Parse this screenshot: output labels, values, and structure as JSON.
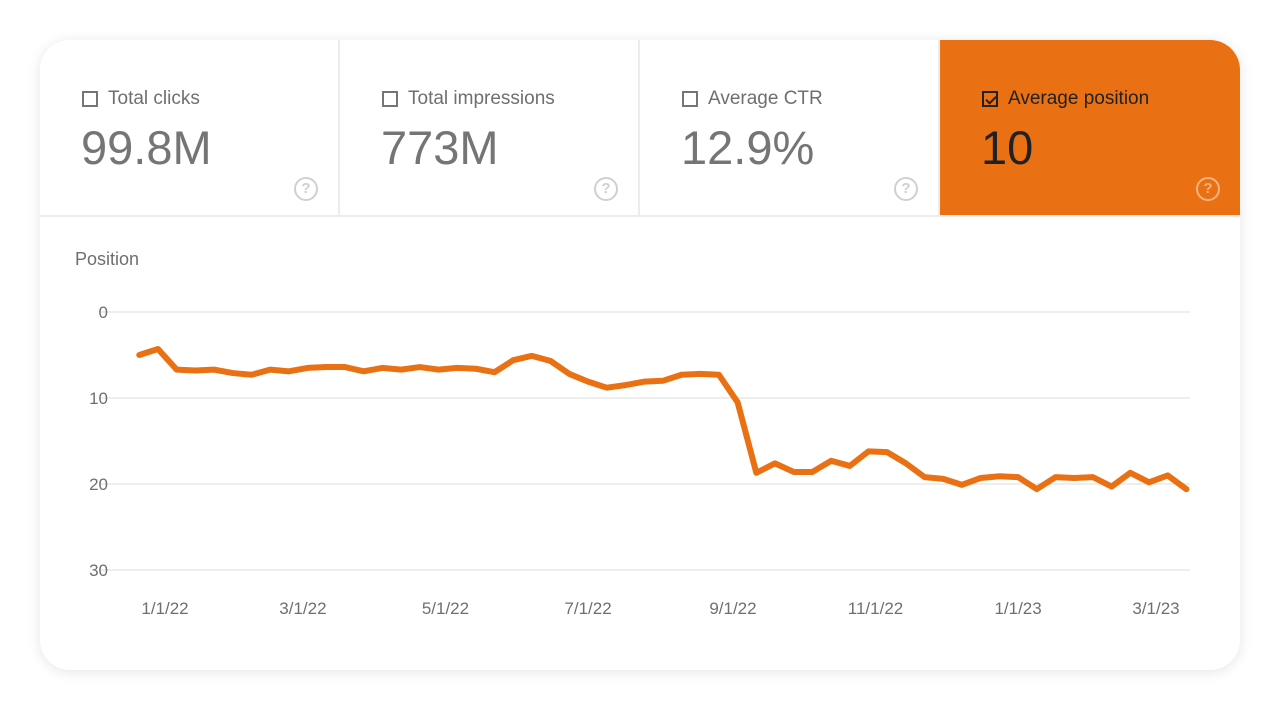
{
  "metrics": [
    {
      "label": "Total clicks",
      "value": "99.8M",
      "checked": false
    },
    {
      "label": "Total impressions",
      "value": "773M",
      "checked": false
    },
    {
      "label": "Average CTR",
      "value": "12.9%",
      "checked": false
    },
    {
      "label": "Average position",
      "value": "10",
      "checked": true
    }
  ],
  "help_glyph": "?",
  "colors": {
    "accent": "#e97113",
    "grid": "#e8e8e8",
    "text": "#6f6f6f"
  },
  "chart_data": {
    "type": "line",
    "ylabel": "Position",
    "y_inverted": true,
    "ylim": [
      0,
      30
    ],
    "yticks": [
      0,
      10,
      20,
      30
    ],
    "xticks": [
      "1/1/22",
      "3/1/22",
      "5/1/22",
      "7/1/22",
      "9/1/22",
      "11/1/22",
      "1/1/23",
      "3/1/23"
    ],
    "grid": true,
    "series": [
      {
        "color": "#e97113",
        "x": [
          "2021-12-21",
          "2021-12-29",
          "2022-01-06",
          "2022-01-14",
          "2022-01-22",
          "2022-01-30",
          "2022-02-07",
          "2022-02-15",
          "2022-02-23",
          "2022-03-03",
          "2022-03-11",
          "2022-03-19",
          "2022-03-27",
          "2022-04-04",
          "2022-04-12",
          "2022-04-20",
          "2022-04-28",
          "2022-05-06",
          "2022-05-14",
          "2022-05-22",
          "2022-05-30",
          "2022-06-07",
          "2022-06-15",
          "2022-06-23",
          "2022-07-01",
          "2022-07-09",
          "2022-07-17",
          "2022-07-25",
          "2022-08-02",
          "2022-08-10",
          "2022-08-18",
          "2022-08-26",
          "2022-09-03",
          "2022-09-11",
          "2022-09-19",
          "2022-09-27",
          "2022-10-05",
          "2022-10-13",
          "2022-10-21",
          "2022-10-29",
          "2022-11-06",
          "2022-11-14",
          "2022-11-22",
          "2022-11-30",
          "2022-12-08",
          "2022-12-16",
          "2022-12-24",
          "2023-01-01",
          "2023-01-09",
          "2023-01-17",
          "2023-01-25",
          "2023-02-02",
          "2023-02-10",
          "2023-02-18",
          "2023-02-26",
          "2023-03-06",
          "2023-03-14"
        ],
        "y": [
          5.0,
          4.3,
          6.7,
          6.8,
          6.7,
          7.1,
          7.3,
          6.7,
          6.9,
          6.5,
          6.4,
          6.4,
          6.9,
          6.5,
          6.7,
          6.4,
          6.7,
          6.5,
          6.6,
          7.0,
          5.6,
          5.1,
          5.7,
          7.2,
          8.1,
          8.8,
          8.5,
          8.1,
          8.0,
          7.3,
          7.2,
          7.3,
          10.5,
          18.7,
          17.6,
          18.6,
          18.6,
          17.3,
          17.9,
          16.2,
          16.3,
          17.6,
          19.2,
          19.4,
          20.1,
          19.3,
          19.1,
          19.2,
          20.6,
          19.2,
          19.3,
          19.2,
          20.3,
          18.7,
          19.8,
          19.0,
          20.6
        ]
      }
    ]
  }
}
